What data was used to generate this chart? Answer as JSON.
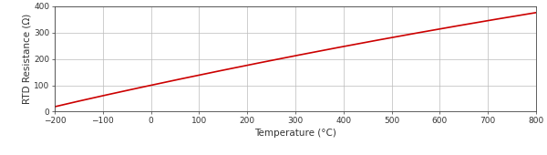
{
  "title": "",
  "xlabel": "Temperature (°C)",
  "ylabel": "RTD Resistance (Ω)",
  "xlim": [
    -200,
    800
  ],
  "ylim": [
    0,
    400
  ],
  "xticks": [
    -200,
    -100,
    0,
    100,
    200,
    300,
    400,
    500,
    600,
    700,
    800
  ],
  "yticks": [
    0,
    100,
    200,
    300,
    400
  ],
  "line_color": "#cc0000",
  "line_width": 1.2,
  "background_color": "#ffffff",
  "grid_color": "#bbbbbb",
  "spine_color": "#444444",
  "tick_fontsize": 6.5,
  "label_fontsize": 7.5
}
